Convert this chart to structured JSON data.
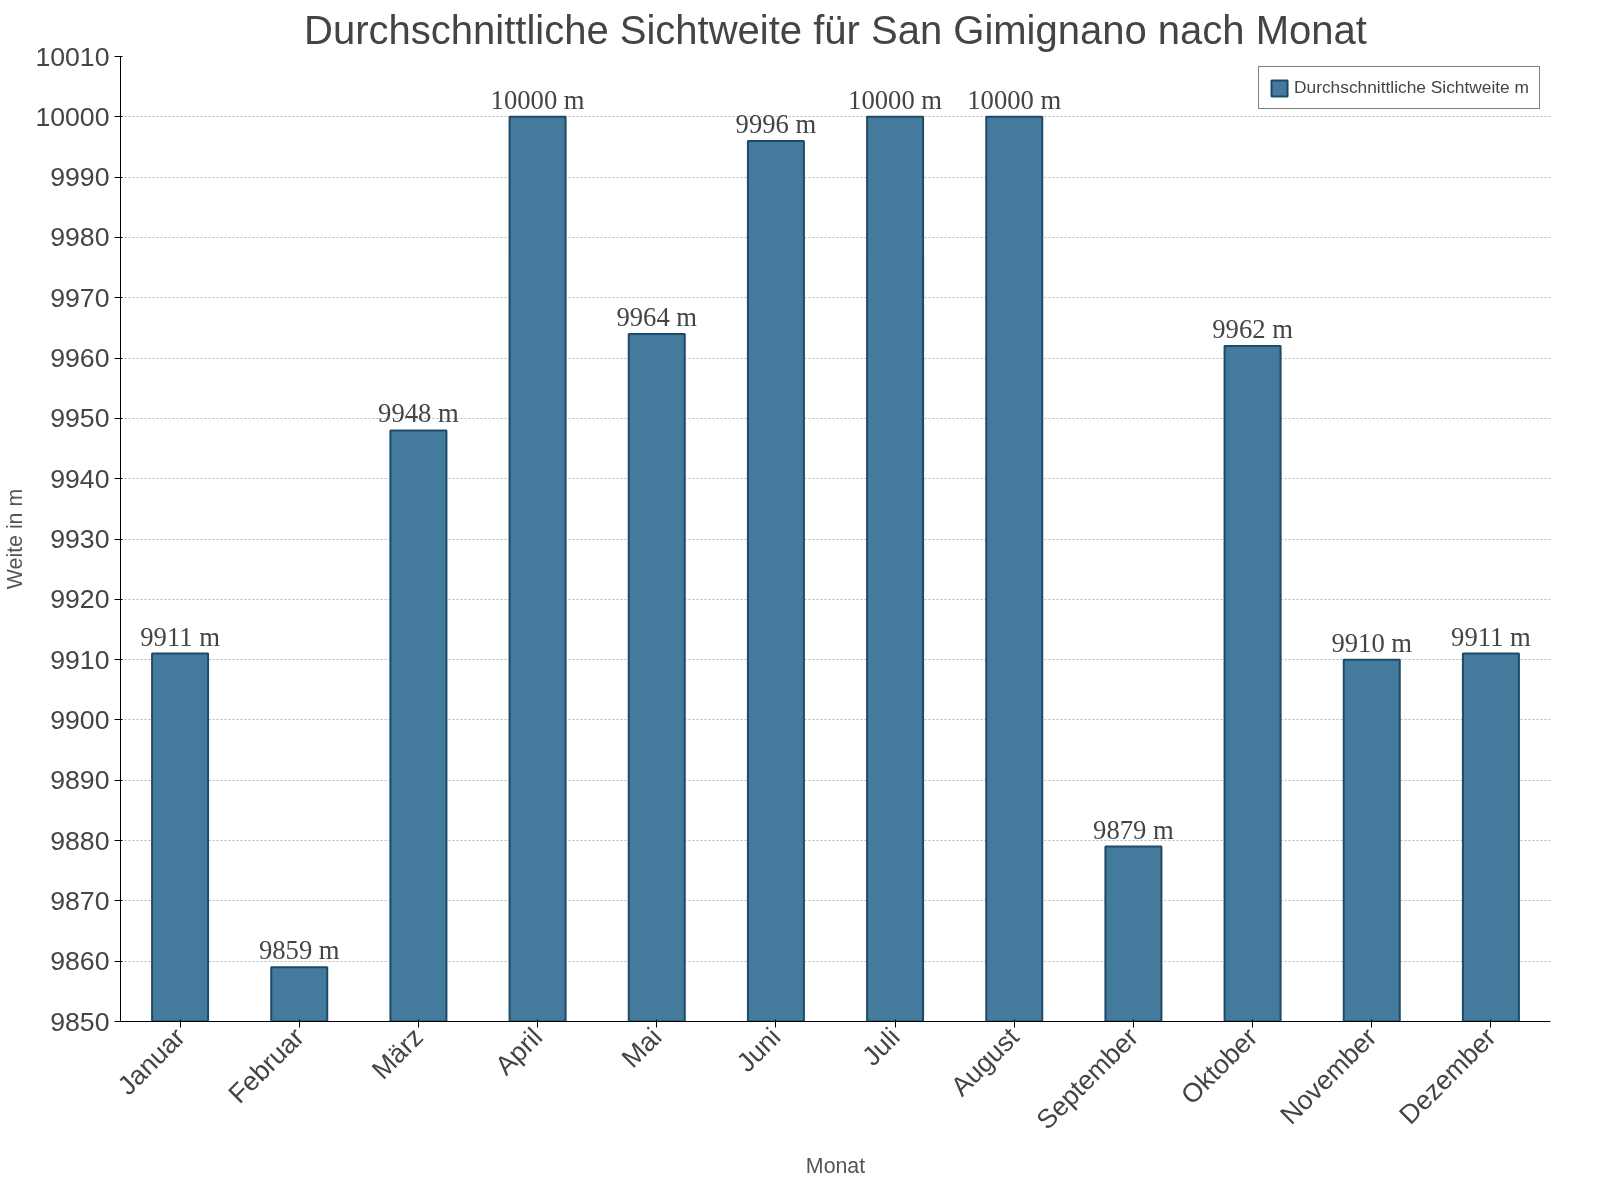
{
  "chart_data": {
    "type": "bar",
    "title": "Durchschnittliche Sichtweite für San Gimignano nach Monat",
    "xlabel": "Monat",
    "ylabel": "Weite in m",
    "categories": [
      "Januar",
      "Februar",
      "März",
      "April",
      "Mai",
      "Juni",
      "Juli",
      "August",
      "September",
      "Oktober",
      "November",
      "Dezember"
    ],
    "series": [
      {
        "name": "Durchschnittliche Sichtweite m",
        "color": "#447a9c",
        "values": [
          9911,
          9859,
          9948,
          10000,
          9964,
          9996,
          10000,
          10000,
          9879,
          9962,
          9910,
          9911
        ]
      }
    ],
    "value_labels": [
      "9911 m",
      "9859 m",
      "9948 m",
      "10000 m",
      "9964 m",
      "9996 m",
      "10000 m",
      "10000 m",
      "9879 m",
      "9962 m",
      "9910 m",
      "9911 m"
    ],
    "ylim": [
      9850,
      10010
    ],
    "yticks": [
      9850,
      9860,
      9870,
      9880,
      9890,
      9900,
      9910,
      9920,
      9930,
      9940,
      9950,
      9960,
      9970,
      9980,
      9990,
      10000,
      10010
    ],
    "grid": "y",
    "legend": "top right"
  }
}
